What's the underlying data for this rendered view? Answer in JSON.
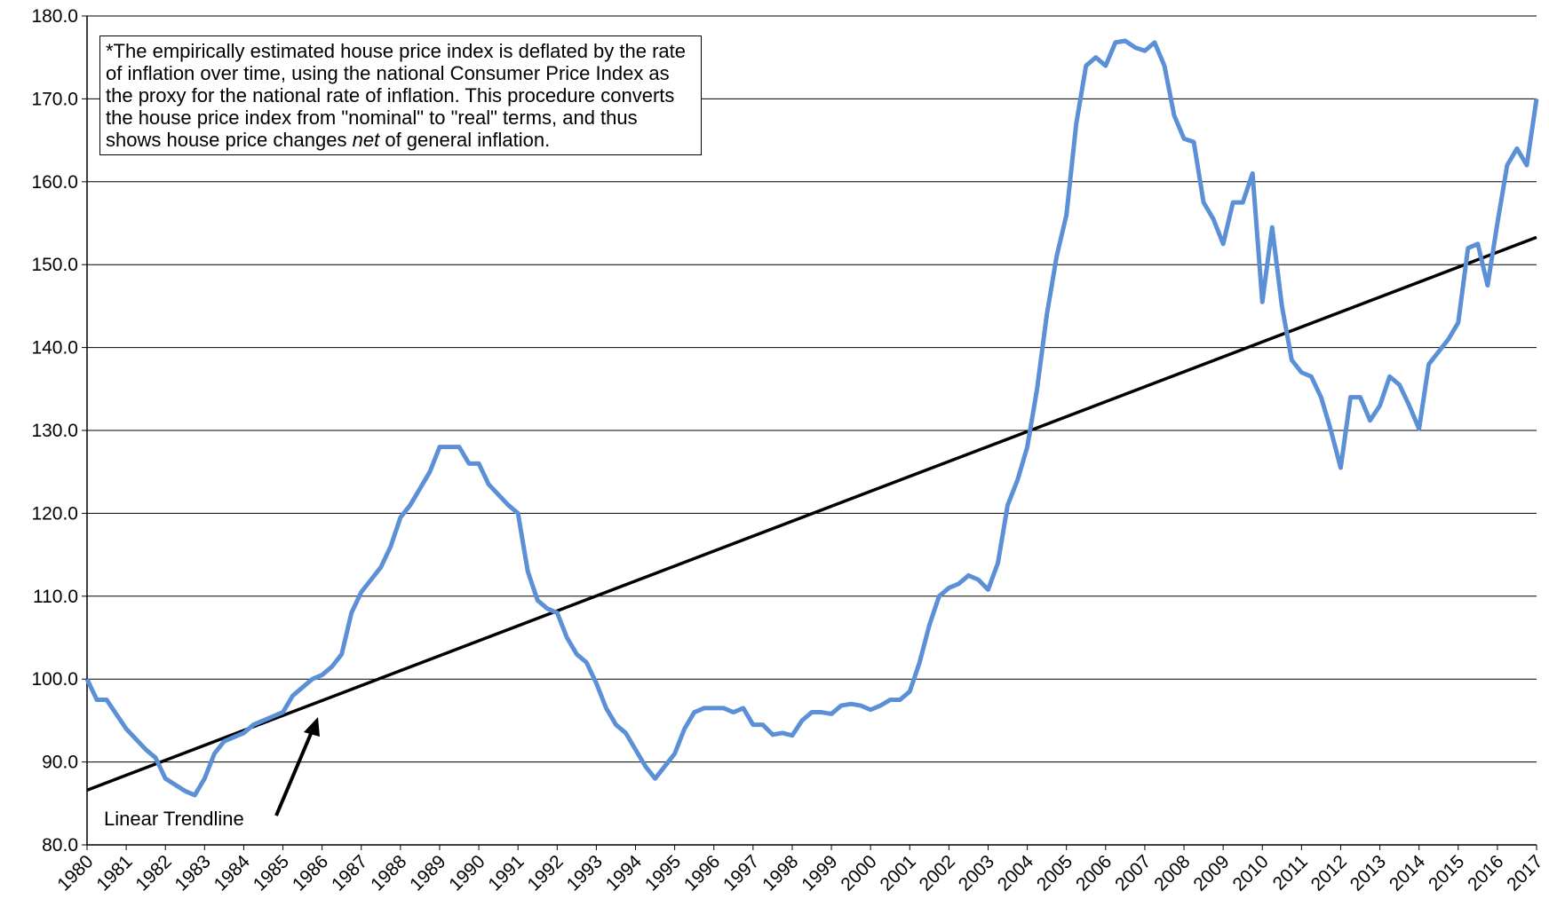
{
  "chart_data": {
    "type": "line",
    "note": [
      {
        "text": "*The empirically estimated house price index is deflated by the rate of inflation over time, using the national Consumer Price Index as the proxy for the national rate of inflation.  This procedure converts the house price index from \"nominal\" to \"real\" terms, and thus shows house price changes "
      },
      {
        "text": "net",
        "italic": true
      },
      {
        "text": " of general inflation."
      }
    ],
    "annotation": "Linear Trendline",
    "xlim": [
      1980,
      2017
    ],
    "xticks": [
      1980,
      1981,
      1982,
      1983,
      1984,
      1985,
      1986,
      1987,
      1988,
      1989,
      1990,
      1991,
      1992,
      1993,
      1994,
      1995,
      1996,
      1997,
      1998,
      1999,
      2000,
      2001,
      2002,
      2003,
      2004,
      2005,
      2006,
      2007,
      2008,
      2009,
      2010,
      2011,
      2012,
      2013,
      2014,
      2015,
      2016,
      2017
    ],
    "ylim": [
      80,
      180
    ],
    "yticks": [
      {
        "value": 80,
        "label": "80.0"
      },
      {
        "value": 90,
        "label": "90.0"
      },
      {
        "value": 100,
        "label": "100.0"
      },
      {
        "value": 110,
        "label": "110.0"
      },
      {
        "value": 120,
        "label": "120.0"
      },
      {
        "value": 130,
        "label": "130.0"
      },
      {
        "value": 140,
        "label": "140.0"
      },
      {
        "value": 150,
        "label": "150.0"
      },
      {
        "value": 160,
        "label": "160.0"
      },
      {
        "value": 170,
        "label": "170.0"
      },
      {
        "value": 180,
        "label": "180.0"
      }
    ],
    "grid": true,
    "x": [
      1980,
      1980.25,
      1980.5,
      1981,
      1981.5,
      1981.75,
      1982,
      1982.5,
      1982.75,
      1983,
      1983.25,
      1983.5,
      1984,
      1984.25,
      1984.75,
      1985,
      1985.25,
      1985.75,
      1986,
      1986.25,
      1986.5,
      1986.75,
      1987,
      1987.5,
      1987.75,
      1988,
      1988.25,
      1988.75,
      1989,
      1989.25,
      1989.5,
      1989.75,
      1990,
      1990.25,
      1990.75,
      1991,
      1991.25,
      1991.5,
      1991.75,
      1992,
      1992.25,
      1992.5,
      1992.75,
      1993,
      1993.25,
      1993.5,
      1993.75,
      1994,
      1994.25,
      1994.5,
      1994.75,
      1995,
      1995.25,
      1995.5,
      1995.75,
      1996.25,
      1996.5,
      1996.75,
      1997,
      1997.25,
      1997.5,
      1997.75,
      1998,
      1998.25,
      1998.5,
      1998.75,
      1999,
      1999.25,
      1999.5,
      1999.75,
      2000,
      2000.25,
      2000.5,
      2000.75,
      2001,
      2001.25,
      2001.5,
      2001.75,
      2002,
      2002.25,
      2002.5,
      2002.75,
      2003,
      2003.25,
      2003.5,
      2003.75,
      2004,
      2004.25,
      2004.5,
      2004.75,
      2005,
      2005.25,
      2005.5,
      2005.75,
      2006,
      2006.25,
      2006.5,
      2006.75,
      2007,
      2007.25,
      2007.5,
      2007.75,
      2008,
      2008.25,
      2008.5,
      2008.75,
      2009,
      2009.25,
      2009.5,
      2009.75,
      2010,
      2010.25,
      2010.5,
      2010.75,
      2011,
      2011.25,
      2011.5,
      2011.75,
      2012,
      2012.25,
      2012.5,
      2012.75,
      2013,
      2013.25,
      2013.5,
      2013.75,
      2014,
      2014.25,
      2014.5,
      2014.75,
      2015,
      2015.25,
      2015.5,
      2015.75,
      2016,
      2016.25,
      2016.5,
      2016.75,
      2017
    ],
    "series": [
      {
        "color": "#5b8fd6",
        "values": [
          100,
          97.5,
          97.5,
          94,
          91.5,
          90.5,
          88,
          86.5,
          86,
          88,
          91,
          92.5,
          93.5,
          94.5,
          95.5,
          96,
          98,
          100,
          100.5,
          101.5,
          103,
          108,
          110.5,
          113.5,
          116,
          119.5,
          121,
          125,
          128,
          128,
          128,
          126,
          126,
          123.5,
          121,
          120,
          113,
          109.5,
          108.5,
          108,
          105,
          103,
          102,
          99.5,
          96.5,
          94.5,
          93.5,
          91.5,
          89.5,
          88,
          89.5,
          91,
          94,
          96,
          96.5,
          96.5,
          96,
          96.5,
          94.5,
          94.5,
          93.3,
          93.5,
          93.2,
          95,
          96,
          96,
          95.8,
          96.8,
          97,
          96.8,
          96.3,
          96.8,
          97.5,
          97.5,
          98.5,
          102,
          106.5,
          110,
          111,
          111.5,
          112.5,
          112,
          110.8,
          114,
          121,
          124,
          128,
          135,
          144,
          151,
          156,
          167,
          174,
          175,
          174,
          176.8,
          177,
          176.2,
          175.8,
          176.8,
          174,
          168,
          165.2,
          164.8,
          157.5,
          155.5,
          152.5,
          157.5,
          157.5,
          161,
          145.5,
          154.5,
          145,
          138.5,
          137,
          136.5,
          134,
          130,
          125.5,
          134,
          134,
          131.2,
          133,
          136.5,
          135.5,
          133,
          130.2,
          138,
          139.5,
          141,
          143,
          152,
          152.5,
          147.5,
          155,
          162,
          164,
          162,
          170
        ]
      }
    ],
    "trendline": {
      "color": "#000000",
      "x": [
        1980,
        2017
      ],
      "values": [
        86.6,
        153.3
      ]
    }
  }
}
